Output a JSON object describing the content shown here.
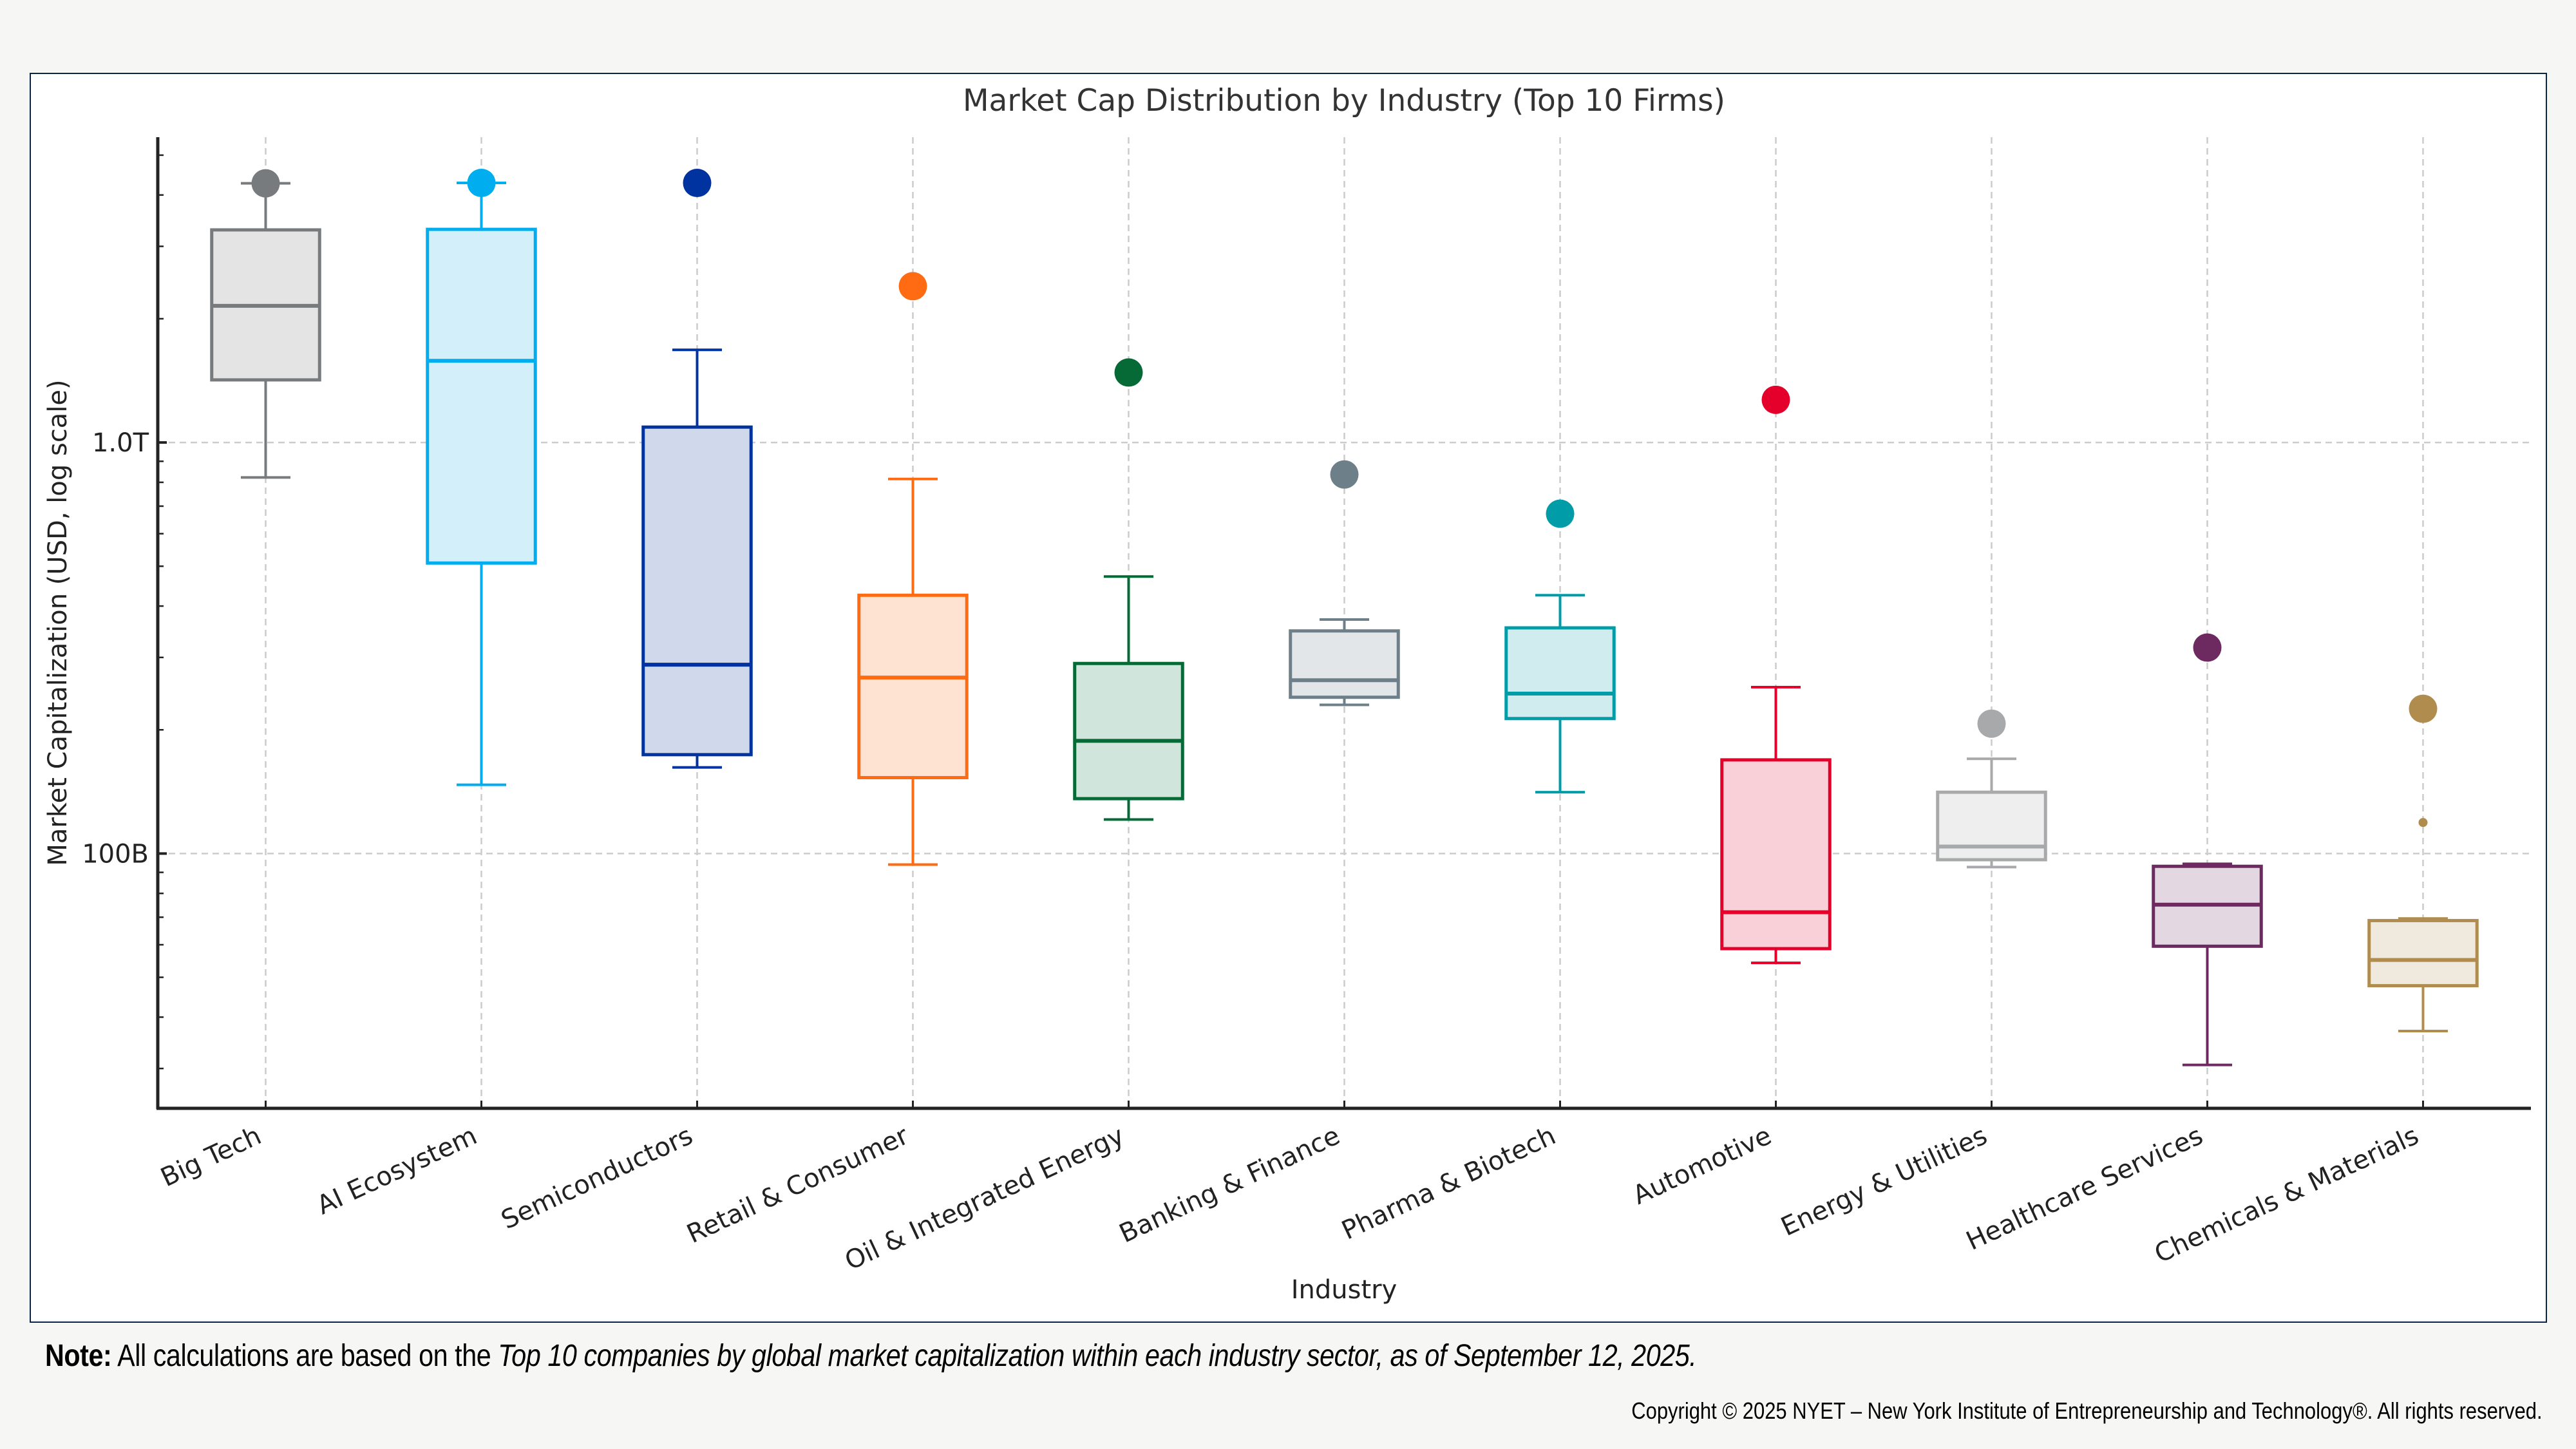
{
  "chart_data": {
    "type": "box",
    "title": "Market Cap Distribution by Industry (Top 10 Firms)",
    "xlabel": "Industry",
    "ylabel": "Market Capitalization (USD, log scale)",
    "yscale": "log",
    "units": "billions USD",
    "ylim": [
      24,
      5530
    ],
    "yticks": [
      {
        "value": 100,
        "label": "100B"
      },
      {
        "value": 1000,
        "label": "1.0T"
      }
    ],
    "grid": true,
    "legend": "none",
    "categories": [
      "Big Tech",
      "AI Ecosystem",
      "Semiconductors",
      "Retail & Consumer",
      "Oil & Integrated Energy",
      "Banking & Finance",
      "Pharma & Biotech",
      "Automotive",
      "Energy & Utilities",
      "Healthcare Services",
      "Chemicals & Materials"
    ],
    "series": [
      {
        "name": "Big Tech",
        "color": "#777b7e",
        "fill": "#e4e4e4",
        "whisker_low": 822,
        "q1": 1420,
        "median": 2150,
        "q3": 3290,
        "whisker_high": 4270,
        "outliers": [
          4270
        ]
      },
      {
        "name": "AI Ecosystem",
        "color": "#00adef",
        "fill": "#d2effa",
        "whisker_low": 147,
        "q1": 509,
        "median": 1580,
        "q3": 3300,
        "whisker_high": 4280,
        "outliers": [
          4280
        ]
      },
      {
        "name": "Semiconductors",
        "color": "#0033a0",
        "fill": "#d0d9ec",
        "whisker_low": 162,
        "q1": 174,
        "median": 288,
        "q3": 1090,
        "whisker_high": 1680,
        "outliers": [
          4280
        ]
      },
      {
        "name": "Retail & Consumer",
        "color": "#ff6b13",
        "fill": "#ffe3d2",
        "whisker_low": 94,
        "q1": 153,
        "median": 268,
        "q3": 425,
        "whisker_high": 815,
        "outliers": [
          2400
        ]
      },
      {
        "name": "Oil & Integrated Energy",
        "color": "#066a37",
        "fill": "#d0e5db",
        "whisker_low": 121,
        "q1": 136,
        "median": 188,
        "q3": 290,
        "whisker_high": 472,
        "outliers": [
          1480
        ]
      },
      {
        "name": "Banking & Finance",
        "color": "#6d7f88",
        "fill": "#e2e6e9",
        "whisker_low": 230,
        "q1": 240,
        "median": 264,
        "q3": 348,
        "whisker_high": 371,
        "outliers": [
          836
        ]
      },
      {
        "name": "Pharma & Biotech",
        "color": "#009da9",
        "fill": "#d1ecee",
        "whisker_low": 141,
        "q1": 213,
        "median": 245,
        "q3": 354,
        "whisker_high": 425,
        "outliers": [
          671
        ]
      },
      {
        "name": "Automotive",
        "color": "#e4002b",
        "fill": "#f9d0d8",
        "whisker_low": 54.2,
        "q1": 58.7,
        "median": 72,
        "q3": 169,
        "whisker_high": 254,
        "outliers": [
          1270
        ]
      },
      {
        "name": "Energy & Utilities",
        "color": "#a8a9ab",
        "fill": "#eeeeee",
        "whisker_low": 92.7,
        "q1": 96.6,
        "median": 104,
        "q3": 141,
        "whisker_high": 170,
        "outliers": [
          207
        ]
      },
      {
        "name": "Healthcare Services",
        "color": "#6d2a60",
        "fill": "#e3d7e2",
        "whisker_low": 30.6,
        "q1": 59.5,
        "median": 75.1,
        "q3": 93.1,
        "whisker_high": 94.4,
        "outliers": [
          317
        ]
      },
      {
        "name": "Chemicals & Materials",
        "color": "#b08d4f",
        "fill": "#f0e9dd",
        "whisker_low": 37,
        "q1": 47.7,
        "median": 55.1,
        "q3": 68.7,
        "whisker_high": 69.5,
        "outliers": [
          225
        ],
        "minor_points": [
          119
        ]
      }
    ]
  },
  "footer": {
    "note_label": "Note:",
    "note_text_plain": " All calculations are based on the ",
    "note_text_italic": "Top 10 companies by global market capitalization within each industry sector, as of September 12, 2025.",
    "copyright": "Copyright © 2025 NYET – New York Institute of Entrepreneurship and Technology®. All rights reserved."
  }
}
